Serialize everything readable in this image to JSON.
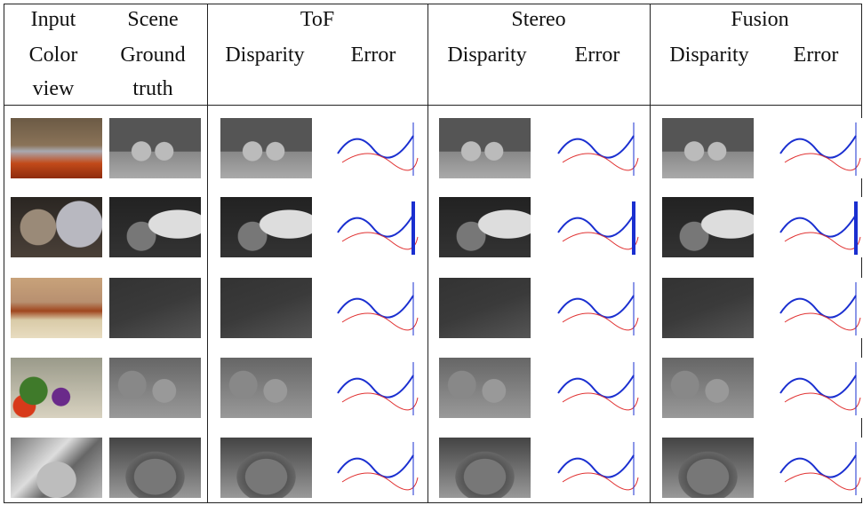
{
  "header": {
    "row1": [
      "Input",
      "Scene",
      "ToF",
      "Stereo",
      "Fusion"
    ],
    "row2": [
      "Color",
      "Ground",
      "Disparity",
      "Error",
      "Disparity",
      "Error",
      "Disparity",
      "Error"
    ],
    "row3": [
      "view",
      "truth"
    ]
  }
}
